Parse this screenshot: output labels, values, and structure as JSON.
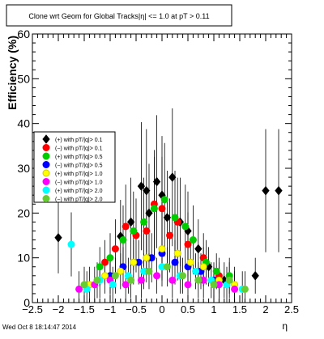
{
  "title": "Clone wrt Geom for Global Tracks|η| <= 1.0 at pT > 0.11",
  "footer": "Wed Oct  8 18:14:47 2014",
  "chart_data": {
    "type": "scatter",
    "xlabel": "η",
    "ylabel": "Efficiency (%)",
    "xlim": [
      -2.5,
      2.5
    ],
    "ylim": [
      0,
      60
    ],
    "xticks": [
      "−2.5",
      "−2",
      "−1.5",
      "−1",
      "−0.5",
      "0",
      "0.5",
      "1",
      "1.5",
      "2",
      "2.5"
    ],
    "yticks": [
      "0",
      "10",
      "20",
      "30",
      "40",
      "50",
      "60"
    ],
    "legend_position": "left",
    "series": [
      {
        "name": "(+) with pT/|q|> 0.1",
        "color": "#000000",
        "points": [
          [
            -2.0,
            14.5
          ],
          [
            -0.8,
            14.8
          ],
          [
            -0.6,
            18
          ],
          [
            -0.4,
            26
          ],
          [
            -0.3,
            25
          ],
          [
            -0.25,
            20
          ],
          [
            -0.1,
            27
          ],
          [
            0.0,
            24
          ],
          [
            0.1,
            19
          ],
          [
            0.2,
            28
          ],
          [
            0.35,
            18
          ],
          [
            0.5,
            16
          ],
          [
            0.7,
            12
          ],
          [
            0.9,
            8
          ],
          [
            1.2,
            5
          ],
          [
            1.8,
            6
          ],
          [
            2.0,
            25
          ],
          [
            2.25,
            25
          ]
        ]
      },
      {
        "name": "(−) with pT/|q|> 0.1",
        "color": "#ff0000",
        "points": [
          [
            -1.1,
            9
          ],
          [
            -0.9,
            12
          ],
          [
            -0.7,
            17
          ],
          [
            -0.5,
            15
          ],
          [
            -0.3,
            16
          ],
          [
            -0.15,
            22
          ],
          [
            0.0,
            21
          ],
          [
            0.15,
            15
          ],
          [
            0.3,
            18
          ],
          [
            0.5,
            13
          ],
          [
            0.8,
            10
          ],
          [
            1.1,
            6
          ]
        ]
      },
      {
        "name": "(+) with pT/|q|> 0.5",
        "color": "#00cc00",
        "points": [
          [
            -1.2,
            8
          ],
          [
            -1.0,
            10
          ],
          [
            -0.75,
            14
          ],
          [
            -0.55,
            16
          ],
          [
            -0.35,
            18
          ],
          [
            -0.15,
            21
          ],
          [
            0.05,
            23
          ],
          [
            0.25,
            19
          ],
          [
            0.45,
            17
          ],
          [
            0.6,
            14
          ],
          [
            0.85,
            9
          ],
          [
            1.05,
            7
          ],
          [
            1.3,
            6
          ]
        ]
      },
      {
        "name": "(−) with pT/|q|> 0.5",
        "color": "#0000ff",
        "points": [
          [
            -1.0,
            6
          ],
          [
            -0.75,
            8
          ],
          [
            -0.45,
            9
          ],
          [
            -0.2,
            10
          ],
          [
            0.0,
            11
          ],
          [
            0.25,
            9
          ],
          [
            0.5,
            8
          ],
          [
            0.75,
            7
          ],
          [
            1.0,
            5
          ]
        ]
      },
      {
        "name": "(+) with pT/|q|> 1.0",
        "color": "#ffff00",
        "points": [
          [
            -1.4,
            4
          ],
          [
            -1.1,
            6
          ],
          [
            -0.8,
            7
          ],
          [
            -0.55,
            9
          ],
          [
            -0.3,
            10
          ],
          [
            0.0,
            12
          ],
          [
            0.3,
            11
          ],
          [
            0.55,
            9
          ],
          [
            0.8,
            8
          ],
          [
            1.1,
            5
          ],
          [
            1.4,
            4
          ]
        ]
      },
      {
        "name": "(−) with pT/|q|> 1.0",
        "color": "#ff00ff",
        "points": [
          [
            -1.6,
            3
          ],
          [
            -1.3,
            4
          ],
          [
            -1.0,
            5
          ],
          [
            -0.7,
            4
          ],
          [
            -0.4,
            5
          ],
          [
            -0.1,
            6
          ],
          [
            0.2,
            5
          ],
          [
            0.5,
            4
          ],
          [
            0.8,
            5
          ],
          [
            1.1,
            4
          ],
          [
            1.4,
            3
          ]
        ]
      },
      {
        "name": "(+) with pT/|q|> 2.0",
        "color": "#00ffff",
        "points": [
          [
            -1.75,
            13
          ],
          [
            -1.45,
            3
          ],
          [
            -1.2,
            5
          ],
          [
            -0.95,
            4
          ],
          [
            -0.65,
            6
          ],
          [
            -0.35,
            7
          ],
          [
            0.0,
            8
          ],
          [
            0.35,
            6
          ],
          [
            0.65,
            7
          ],
          [
            0.95,
            5
          ],
          [
            1.25,
            4
          ],
          [
            1.55,
            3
          ]
        ]
      },
      {
        "name": "(−) with pT/|q|> 2.0",
        "color": "#66cc33",
        "points": [
          [
            -1.5,
            4
          ],
          [
            -1.25,
            5
          ],
          [
            -0.9,
            6
          ],
          [
            -0.6,
            5
          ],
          [
            -0.25,
            7
          ],
          [
            0.1,
            8
          ],
          [
            0.4,
            6
          ],
          [
            0.7,
            5
          ],
          [
            1.0,
            4
          ],
          [
            1.3,
            5
          ],
          [
            1.6,
            3
          ]
        ]
      }
    ]
  }
}
